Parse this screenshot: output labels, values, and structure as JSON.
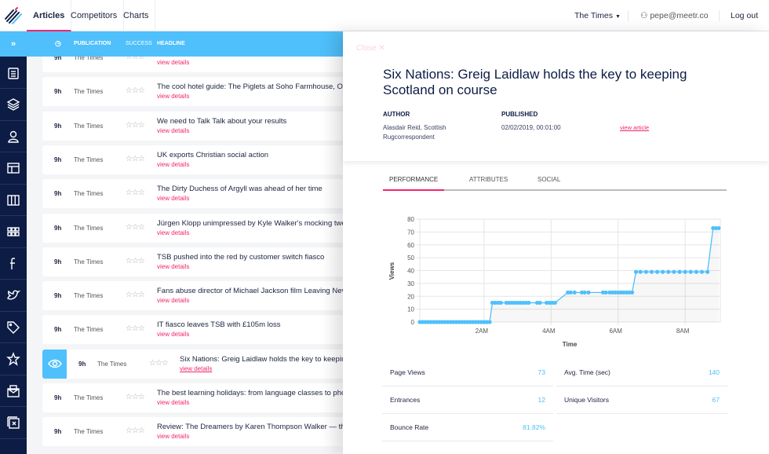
{
  "nav": {
    "tabs": [
      "Articles",
      "Competitors",
      "Charts"
    ],
    "publication": "The Times",
    "user": "pepe@meetr.co",
    "logout": "Log out"
  },
  "colors": {
    "accent": "#f2266b",
    "brand_blue": "#4fc0fb",
    "sidebar": "#0c1c45"
  },
  "sidebar": {
    "expand": "»",
    "icons": [
      "articles-icon",
      "layers-icon",
      "users-icon",
      "layout-icon",
      "columns-icon",
      "grid-icon",
      "facebook-icon",
      "twitter-icon",
      "tag-icon",
      "star-icon",
      "csv-mail-icon",
      "close-box-icon"
    ]
  },
  "table": {
    "headers": {
      "time": "clock-icon",
      "publication": "PUBLICATION",
      "success": "SUCCESS",
      "headline": "HEADLINE"
    },
    "view_label": "view details",
    "rows": [
      {
        "time": "9h",
        "publication": "The Times",
        "stars": "☆☆☆",
        "headline": ""
      },
      {
        "time": "9h",
        "publication": "The Times",
        "stars": "☆☆☆",
        "headline": "The cool hotel guide: The Piglets at Soho Farmhouse, Ox"
      },
      {
        "time": "9h",
        "publication": "The Times",
        "stars": "☆☆☆",
        "headline": "We need to Talk Talk about your results"
      },
      {
        "time": "9h",
        "publication": "The Times",
        "stars": "☆☆☆",
        "headline": "UK exports Christian social action"
      },
      {
        "time": "9h",
        "publication": "The Times",
        "stars": "☆☆☆",
        "headline": "The Dirty Duchess of Argyll was ahead of her time"
      },
      {
        "time": "9h",
        "publication": "The Times",
        "stars": "☆☆☆",
        "headline": "Jürgen Klopp unimpressed by Kyle Walker's mocking twe"
      },
      {
        "time": "9h",
        "publication": "The Times",
        "stars": "☆☆☆",
        "headline": "TSB pushed into the red by customer switch fiasco"
      },
      {
        "time": "9h",
        "publication": "The Times",
        "stars": "☆☆☆",
        "headline": "Fans abuse director of Michael Jackson film Leaving Nev"
      },
      {
        "time": "9h",
        "publication": "The Times",
        "stars": "☆☆☆",
        "headline": "IT fiasco leaves TSB with £105m loss"
      },
      {
        "time": "9h",
        "publication": "The Times",
        "stars": "☆☆☆",
        "headline": "Six Nations: Greig Laidlaw holds the key to keepin",
        "selected": true
      },
      {
        "time": "9h",
        "publication": "The Times",
        "stars": "☆☆☆",
        "headline": "The best learning holidays: from language classes to pho"
      },
      {
        "time": "9h",
        "publication": "The Times",
        "stars": "☆☆☆",
        "headline": "Review: The Dreamers by Karen Thompson Walker — th"
      }
    ]
  },
  "detail": {
    "close": "Close",
    "title": "Six Nations: Greig Laidlaw holds the key to keeping Scotland on course",
    "author_label": "AUTHOR",
    "author": "Alasdair Reid, Scottish Rugcorrespondent",
    "published_label": "PUBLISHED",
    "published": "02/02/2019, 00:01:00",
    "view_article": "view article",
    "tabs": [
      "PERFORMANCE",
      "ATTRIBUTES",
      "SOCIAL"
    ],
    "stats": [
      {
        "label": "Page Views",
        "value": "73"
      },
      {
        "label": "Avg. Time (sec)",
        "value": "140"
      },
      {
        "label": "Entrances",
        "value": "12"
      },
      {
        "label": "Unique Visitors",
        "value": "67"
      },
      {
        "label": "Bounce Rate",
        "value": "81.82%"
      }
    ]
  },
  "chart_data": {
    "type": "line",
    "xlabel": "Time",
    "ylabel": "Views",
    "ylim": [
      0,
      80
    ],
    "xlim": [
      "00:05",
      "09:03"
    ],
    "yticks": [
      "0",
      "10",
      "20",
      "30",
      "40",
      "50",
      "60",
      "70",
      "80"
    ],
    "xticks": [
      "2AM",
      "4AM",
      "6AM",
      "8AM"
    ],
    "grid": true,
    "color": "#4fc0fb",
    "points": [
      [
        "00:05",
        0
      ],
      [
        "00:10",
        0
      ],
      [
        "00:15",
        0
      ],
      [
        "00:20",
        0
      ],
      [
        "00:25",
        0
      ],
      [
        "00:30",
        0
      ],
      [
        "00:35",
        0
      ],
      [
        "00:40",
        0
      ],
      [
        "00:45",
        0
      ],
      [
        "00:50",
        0
      ],
      [
        "00:55",
        0
      ],
      [
        "01:00",
        0
      ],
      [
        "01:05",
        0
      ],
      [
        "01:10",
        0
      ],
      [
        "01:15",
        0
      ],
      [
        "01:20",
        0
      ],
      [
        "01:25",
        0
      ],
      [
        "01:30",
        0
      ],
      [
        "01:35",
        0
      ],
      [
        "01:40",
        0
      ],
      [
        "01:45",
        0
      ],
      [
        "01:50",
        0
      ],
      [
        "01:55",
        0
      ],
      [
        "02:00",
        0
      ],
      [
        "02:05",
        0
      ],
      [
        "02:10",
        0
      ],
      [
        "02:15",
        15
      ],
      [
        "02:20",
        15
      ],
      [
        "02:25",
        15
      ],
      [
        "02:30",
        15
      ],
      [
        "02:40",
        15
      ],
      [
        "02:45",
        15
      ],
      [
        "02:50",
        15
      ],
      [
        "02:55",
        15
      ],
      [
        "03:00",
        15
      ],
      [
        "03:05",
        15
      ],
      [
        "03:10",
        15
      ],
      [
        "03:15",
        15
      ],
      [
        "03:20",
        15
      ],
      [
        "03:35",
        15
      ],
      [
        "03:40",
        15
      ],
      [
        "03:52",
        15
      ],
      [
        "03:57",
        15
      ],
      [
        "04:02",
        15
      ],
      [
        "04:07",
        15
      ],
      [
        "04:30",
        23
      ],
      [
        "04:35",
        23
      ],
      [
        "04:42",
        23
      ],
      [
        "04:55",
        23
      ],
      [
        "05:00",
        23
      ],
      [
        "05:07",
        23
      ],
      [
        "05:33",
        23
      ],
      [
        "05:38",
        23
      ],
      [
        "05:45",
        23
      ],
      [
        "05:50",
        23
      ],
      [
        "05:55",
        23
      ],
      [
        "06:00",
        23
      ],
      [
        "06:05",
        23
      ],
      [
        "06:10",
        23
      ],
      [
        "06:15",
        23
      ],
      [
        "06:20",
        23
      ],
      [
        "06:25",
        23
      ],
      [
        "06:32",
        39
      ],
      [
        "06:40",
        39
      ],
      [
        "06:50",
        39
      ],
      [
        "07:00",
        39
      ],
      [
        "07:10",
        39
      ],
      [
        "07:20",
        39
      ],
      [
        "07:30",
        39
      ],
      [
        "07:40",
        39
      ],
      [
        "07:50",
        39
      ],
      [
        "08:00",
        39
      ],
      [
        "08:10",
        39
      ],
      [
        "08:20",
        39
      ],
      [
        "08:30",
        39
      ],
      [
        "08:40",
        39
      ],
      [
        "08:50",
        73
      ],
      [
        "08:55",
        73
      ],
      [
        "09:00",
        73
      ]
    ]
  }
}
